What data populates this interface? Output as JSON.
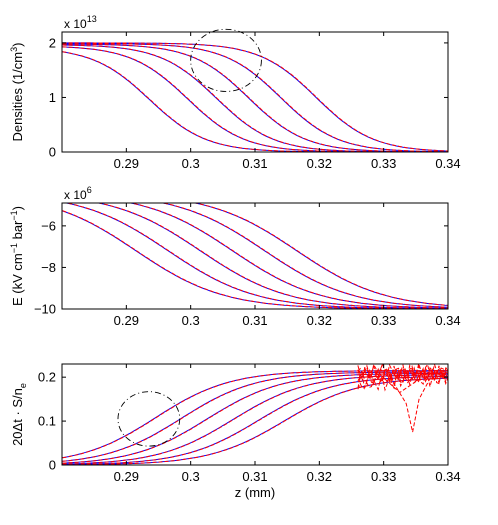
{
  "colors": {
    "blue": "#0000ff",
    "red": "#ff0000",
    "axis": "#000000",
    "annotation": "#000000"
  },
  "chart_data": [
    {
      "type": "line",
      "panel": "top",
      "ylabel": "Densities (1/cm",
      "ylabel_sup": "3",
      "ylabel_close": ")",
      "multiplier_base": "x 10",
      "multiplier_exp": "13",
      "xlim": [
        0.28,
        0.34
      ],
      "ylim": [
        0,
        2.2
      ],
      "x_ticks": [
        0.29,
        0.3,
        0.31,
        0.32,
        0.33,
        0.34
      ],
      "x_tick_labels": [
        "0.29",
        "0.3",
        "0.31",
        "0.32",
        "0.33",
        "0.34"
      ],
      "y_ticks": [
        0,
        1,
        2
      ],
      "y_tick_labels": [
        "0",
        "1",
        "2"
      ],
      "curve_model": "sigmoid",
      "series": [
        {
          "left": 1.92,
          "right": 0,
          "center": 0.2936,
          "width": 0.0044
        },
        {
          "left": 1.95,
          "right": 0,
          "center": 0.2995,
          "width": 0.0044
        },
        {
          "left": 1.97,
          "right": 0,
          "center": 0.304,
          "width": 0.0044
        },
        {
          "left": 1.98,
          "right": 0,
          "center": 0.309,
          "width": 0.0044
        },
        {
          "left": 1.99,
          "right": 0,
          "center": 0.314,
          "width": 0.0044
        },
        {
          "left": 2.0,
          "right": 0,
          "center": 0.3195,
          "width": 0.0044
        }
      ],
      "annotation_circle": {
        "x": 0.3055,
        "y": 1.68,
        "rx": 0.0055,
        "ry": 0.57
      }
    },
    {
      "type": "line",
      "panel": "middle",
      "ylabel": "E (kV cm",
      "ylabel_sup1": "−1",
      "ylabel_mid": " bar",
      "ylabel_sup2": "−1",
      "ylabel_close": ")",
      "multiplier_base": "x 10",
      "multiplier_exp": "6",
      "xlim": [
        0.28,
        0.34
      ],
      "ylim": [
        -10,
        -4.9
      ],
      "x_ticks": [
        0.29,
        0.3,
        0.31,
        0.32,
        0.33,
        0.34
      ],
      "x_tick_labels": [
        "0.29",
        "0.3",
        "0.31",
        "0.32",
        "0.33",
        "0.34"
      ],
      "y_ticks": [
        -10,
        -8,
        -6
      ],
      "y_tick_labels": [
        "−10",
        "−8",
        "−6"
      ],
      "curve_model": "sigmoid",
      "series": [
        {
          "left": -4.4,
          "right": -10,
          "center": 0.2915,
          "width": 0.0068
        },
        {
          "left": -4.4,
          "right": -10,
          "center": 0.2965,
          "width": 0.0068
        },
        {
          "left": -4.4,
          "right": -10,
          "center": 0.3015,
          "width": 0.0068
        },
        {
          "left": -4.4,
          "right": -10,
          "center": 0.3065,
          "width": 0.0068
        },
        {
          "left": -4.4,
          "right": -10,
          "center": 0.3115,
          "width": 0.0068
        },
        {
          "left": -4.4,
          "right": -10,
          "center": 0.3165,
          "width": 0.0068
        }
      ]
    },
    {
      "type": "line",
      "panel": "bottom",
      "ylabel": "20Δt · S/n",
      "ylabel_sub": "e",
      "xlabel": "z (mm)",
      "xlim": [
        0.28,
        0.34
      ],
      "ylim": [
        0,
        0.23
      ],
      "x_ticks": [
        0.29,
        0.3,
        0.31,
        0.32,
        0.33,
        0.34
      ],
      "x_tick_labels": [
        "0.29",
        "0.3",
        "0.31",
        "0.32",
        "0.33",
        "0.34"
      ],
      "y_ticks": [
        0,
        0.1,
        0.2
      ],
      "y_tick_labels": [
        "0",
        "0.1",
        "0.2"
      ],
      "curve_model": "sigmoid",
      "series": [
        {
          "left": 0.0,
          "right": 0.215,
          "center": 0.2945,
          "width": 0.0058
        },
        {
          "left": 0.0,
          "right": 0.212,
          "center": 0.2985,
          "width": 0.0058
        },
        {
          "left": 0.0,
          "right": 0.209,
          "center": 0.3025,
          "width": 0.0058
        },
        {
          "left": 0.0,
          "right": 0.206,
          "center": 0.3065,
          "width": 0.0058
        },
        {
          "left": 0.0,
          "right": 0.203,
          "center": 0.3105,
          "width": 0.0058
        },
        {
          "left": 0.0,
          "right": 0.2,
          "center": 0.3145,
          "width": 0.0058
        }
      ],
      "red_noise_region": {
        "x_start": 0.326,
        "x_end": 0.34,
        "dip_x": 0.3345,
        "dip_y": 0.075
      },
      "annotation_circle": {
        "x": 0.2935,
        "y": 0.105,
        "rx": 0.0048,
        "ry": 0.062
      }
    }
  ]
}
